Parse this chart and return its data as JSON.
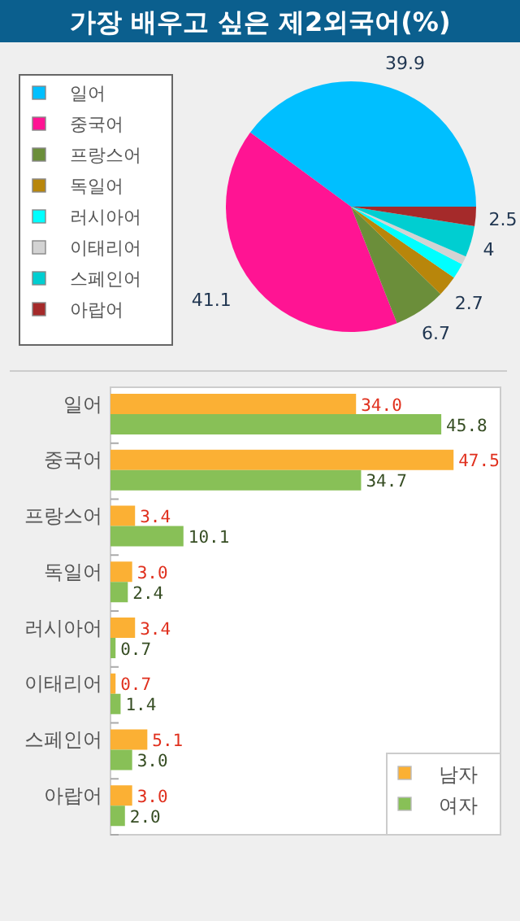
{
  "chart_data": [
    {
      "type": "pie",
      "title": "가장 배우고 싶은 제2외국어(%)",
      "legend": "left",
      "categories": [
        "일어",
        "중국어",
        "프랑스어",
        "독일어",
        "러시아어",
        "이태리어",
        "스페인어",
        "아랍어"
      ],
      "values": [
        39.9,
        41.1,
        6.7,
        2.7,
        2.0,
        1.1,
        4,
        2.5
      ],
      "value_labels": [
        "39.9",
        "41.1",
        "6.7",
        "2.7",
        null,
        null,
        "4",
        "2.5"
      ],
      "colors": [
        "#00bfff",
        "#ff1493",
        "#6b8e3a",
        "#b8860b",
        "#00ffff",
        "#d3d3d3",
        "#00ced1",
        "#a52a2a"
      ]
    },
    {
      "type": "bar",
      "orientation": "horizontal",
      "legend": "bottom right",
      "tick_labels": "y",
      "xlim": [
        0,
        54
      ],
      "categories": [
        "일어",
        "중국어",
        "프랑스어",
        "독일어",
        "러시아어",
        "이태리어",
        "스페인어",
        "아랍어"
      ],
      "series": [
        {
          "name": "남자",
          "color": "#fbb034",
          "values": [
            34.0,
            47.5,
            3.4,
            3.0,
            3.4,
            0.7,
            5.1,
            3.0
          ],
          "value_labels": [
            "34.0",
            "47.5",
            "3.4",
            "3.0",
            "3.4",
            "0.7",
            "5.1",
            "3.0"
          ]
        },
        {
          "name": "여자",
          "color": "#88c057",
          "values": [
            45.8,
            34.7,
            10.1,
            2.4,
            0.7,
            1.4,
            3.0,
            2.0
          ],
          "value_labels": [
            "45.8",
            "34.7",
            "10.1",
            "2.4",
            "0.7",
            "1.4",
            "3.0",
            "2.0"
          ]
        }
      ]
    }
  ]
}
